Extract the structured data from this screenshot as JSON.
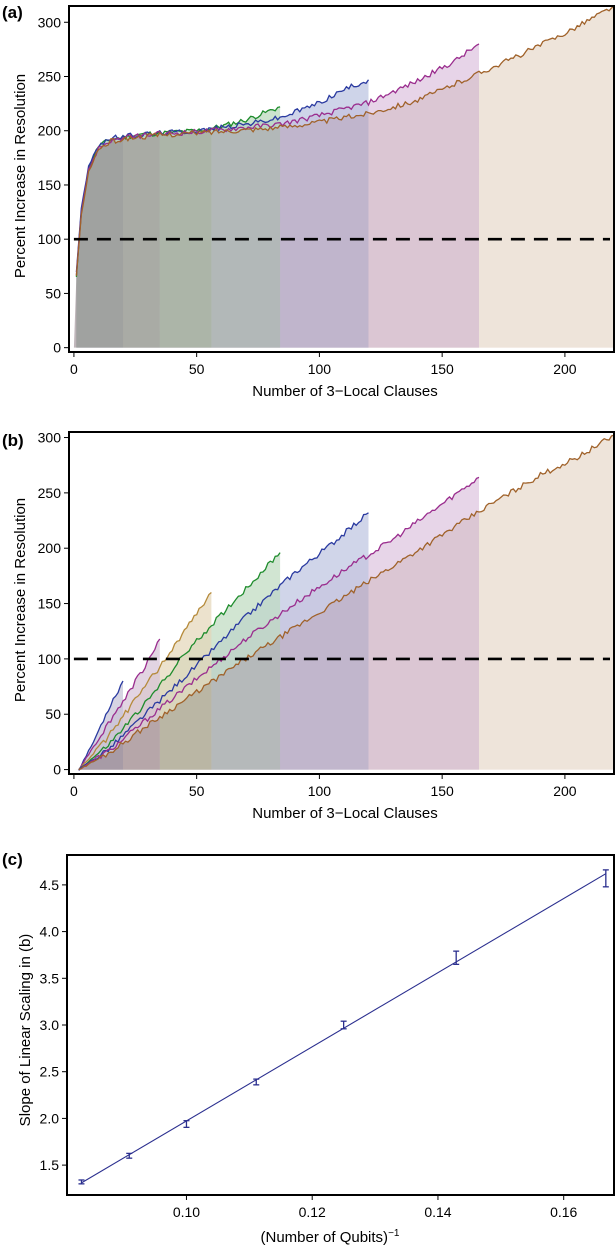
{
  "chart_data": [
    {
      "panel": "(a)",
      "type": "area",
      "xlabel": "Number of 3−Local Clauses",
      "ylabel": "Percent Increase in Resolution",
      "xlim": [
        -2,
        220
      ],
      "ylim": [
        -4,
        315
      ],
      "xticks": [
        0,
        50,
        100,
        150,
        200
      ],
      "yticks": [
        0,
        50,
        100,
        150,
        200,
        250,
        300
      ],
      "reference_line": {
        "y": 100,
        "style": "dashed"
      },
      "series": [
        {
          "color": "#1e8c2c",
          "fill": "#b6d8b9",
          "x_end": 84,
          "points": [
            [
              1,
              65
            ],
            [
              3,
              125
            ],
            [
              6,
              165
            ],
            [
              10,
              186
            ],
            [
              15,
              192
            ],
            [
              25,
              196
            ],
            [
              35,
              198
            ],
            [
              50,
              200
            ],
            [
              60,
              204
            ],
            [
              70,
              210
            ],
            [
              84,
              222
            ]
          ]
        },
        {
          "color": "#2a3aa0",
          "fill": "#b9c2e0",
          "x_end": 120,
          "points": [
            [
              1,
              70
            ],
            [
              3,
              128
            ],
            [
              6,
              167
            ],
            [
              10,
              187
            ],
            [
              15,
              193
            ],
            [
              25,
              196
            ],
            [
              35,
              198
            ],
            [
              50,
              200
            ],
            [
              70,
              206
            ],
            [
              84,
              212
            ],
            [
              100,
              226
            ],
            [
              110,
              238
            ],
            [
              120,
              247
            ]
          ]
        },
        {
          "color": "#9a2d8e",
          "fill": "#ddc2de",
          "x_end": 165,
          "points": [
            [
              1,
              68
            ],
            [
              3,
              124
            ],
            [
              6,
              164
            ],
            [
              10,
              184
            ],
            [
              15,
              191
            ],
            [
              25,
              195
            ],
            [
              35,
              197
            ],
            [
              50,
              199
            ],
            [
              70,
              203
            ],
            [
              84,
              206
            ],
            [
              100,
              214
            ],
            [
              120,
              226
            ],
            [
              140,
              246
            ],
            [
              155,
              264
            ],
            [
              165,
              280
            ]
          ]
        },
        {
          "color": "#a0622a",
          "fill": "#ecdfd3",
          "x_end": 220,
          "points": [
            [
              1,
              66
            ],
            [
              3,
              122
            ],
            [
              6,
              162
            ],
            [
              10,
              183
            ],
            [
              15,
              190
            ],
            [
              25,
              194
            ],
            [
              35,
              196
            ],
            [
              50,
              198
            ],
            [
              70,
              201
            ],
            [
              84,
              203
            ],
            [
              100,
              208
            ],
            [
              120,
              216
            ],
            [
              140,
              228
            ],
            [
              160,
              248
            ],
            [
              180,
              268
            ],
            [
              200,
              290
            ],
            [
              220,
              315
            ]
          ]
        }
      ],
      "bands": [
        {
          "x_start": 0,
          "x_end": 20,
          "color": "#8b7a82"
        },
        {
          "x_start": 20,
          "x_end": 35,
          "color": "#9a8a8a"
        },
        {
          "x_start": 35,
          "x_end": 56,
          "color": "#a09c90"
        },
        {
          "x_start": 56,
          "x_end": 84,
          "color": "#aba2ad"
        },
        {
          "x_start": 84,
          "x_end": 120,
          "color": "#bba8bb"
        },
        {
          "x_start": 120,
          "x_end": 165,
          "color": "#d6c0c9"
        },
        {
          "x_start": 165,
          "x_end": 220,
          "color": "#ebe0d6"
        }
      ]
    },
    {
      "panel": "(b)",
      "type": "area",
      "xlabel": "Number of 3−Local Clauses",
      "ylabel": "Percent Increase in Resolution",
      "xlim": [
        -2,
        220
      ],
      "ylim": [
        -4,
        305
      ],
      "xticks": [
        0,
        50,
        100,
        150,
        200
      ],
      "yticks": [
        0,
        50,
        100,
        150,
        200,
        250,
        300
      ],
      "reference_line": {
        "y": 100,
        "style": "dashed"
      },
      "series": [
        {
          "color": "#2a3aa0",
          "fill": "#c4c2d6",
          "x_end": 20,
          "points": [
            [
              2,
              0
            ],
            [
              8,
              25
            ],
            [
              14,
              55
            ],
            [
              20,
              80
            ]
          ]
        },
        {
          "color": "#9a2d8e",
          "fill": "#d6c2d6",
          "x_end": 35,
          "points": [
            [
              2,
              0
            ],
            [
              10,
              28
            ],
            [
              20,
              62
            ],
            [
              28,
              90
            ],
            [
              35,
              118
            ]
          ]
        },
        {
          "color": "#b58a3a",
          "fill": "#e4d6b8",
          "x_end": 56,
          "points": [
            [
              2,
              0
            ],
            [
              12,
              24
            ],
            [
              24,
              60
            ],
            [
              36,
              96
            ],
            [
              46,
              128
            ],
            [
              56,
              160
            ]
          ]
        },
        {
          "color": "#1e8c2c",
          "fill": "#bedabf",
          "x_end": 84,
          "points": [
            [
              2,
              0
            ],
            [
              14,
              22
            ],
            [
              30,
              62
            ],
            [
              45,
              104
            ],
            [
              60,
              140
            ],
            [
              72,
              168
            ],
            [
              84,
              196
            ]
          ]
        },
        {
          "color": "#2a3aa0",
          "fill": "#bcc3e0",
          "x_end": 120,
          "points": [
            [
              2,
              0
            ],
            [
              15,
              20
            ],
            [
              30,
              52
            ],
            [
              50,
              94
            ],
            [
              70,
              138
            ],
            [
              90,
              178
            ],
            [
              105,
              204
            ],
            [
              120,
              232
            ]
          ]
        },
        {
          "color": "#9a2d8e",
          "fill": "#ddc3de",
          "x_end": 165,
          "points": [
            [
              2,
              0
            ],
            [
              15,
              18
            ],
            [
              30,
              46
            ],
            [
              50,
              82
            ],
            [
              70,
              118
            ],
            [
              90,
              150
            ],
            [
              110,
              180
            ],
            [
              130,
              208
            ],
            [
              150,
              240
            ],
            [
              165,
              264
            ]
          ]
        },
        {
          "color": "#a0622a",
          "fill": "#ecdfd3",
          "x_end": 220,
          "points": [
            [
              2,
              0
            ],
            [
              15,
              16
            ],
            [
              30,
              40
            ],
            [
              50,
              70
            ],
            [
              70,
              100
            ],
            [
              90,
              128
            ],
            [
              110,
              156
            ],
            [
              130,
              184
            ],
            [
              150,
              212
            ],
            [
              170,
              240
            ],
            [
              190,
              266
            ],
            [
              205,
              282
            ],
            [
              220,
              302
            ]
          ]
        }
      ],
      "bands": [
        {
          "x_start": 0,
          "x_end": 20,
          "color": "#8b7a82"
        },
        {
          "x_start": 20,
          "x_end": 35,
          "color": "#9a8a8a"
        },
        {
          "x_start": 35,
          "x_end": 56,
          "color": "#a09c90"
        },
        {
          "x_start": 56,
          "x_end": 84,
          "color": "#aba2ad"
        },
        {
          "x_start": 84,
          "x_end": 120,
          "color": "#bba8bb"
        },
        {
          "x_start": 120,
          "x_end": 165,
          "color": "#d6c0c9"
        },
        {
          "x_start": 165,
          "x_end": 220,
          "color": "#ebe0d6"
        }
      ]
    },
    {
      "panel": "(c)",
      "type": "scatter",
      "xlabel": "(Number of Qubits)",
      "xlabel_superscript": "−1",
      "ylabel": "Slope of Linear Scaling in (b)",
      "xlim": [
        0.081,
        0.168
      ],
      "ylim": [
        1.18,
        4.82
      ],
      "xticks": [
        0.1,
        0.12,
        0.14,
        0.16
      ],
      "xtick_labels": [
        "0.10",
        "0.12",
        "0.14",
        "0.16"
      ],
      "yticks": [
        1.5,
        2.0,
        2.5,
        3.0,
        3.5,
        4.0,
        4.5
      ],
      "ytick_labels": [
        "1.5",
        "2.0",
        "2.5",
        "3.0",
        "3.5",
        "4.0",
        "4.5"
      ],
      "color": "#2b2f8f",
      "points": [
        {
          "x": 0.0833,
          "y": 1.32,
          "err": 0.01
        },
        {
          "x": 0.0909,
          "y": 1.6,
          "err": 0.015
        },
        {
          "x": 0.1,
          "y": 1.94,
          "err": 0.025
        },
        {
          "x": 0.1111,
          "y": 2.39,
          "err": 0.02
        },
        {
          "x": 0.125,
          "y": 3.0,
          "err": 0.03
        },
        {
          "x": 0.1429,
          "y": 3.72,
          "err": 0.06
        },
        {
          "x": 0.1667,
          "y": 4.57,
          "err": 0.08
        }
      ],
      "fit_line": {
        "x": [
          0.0833,
          0.1667
        ],
        "y": [
          1.31,
          4.62
        ]
      }
    }
  ]
}
